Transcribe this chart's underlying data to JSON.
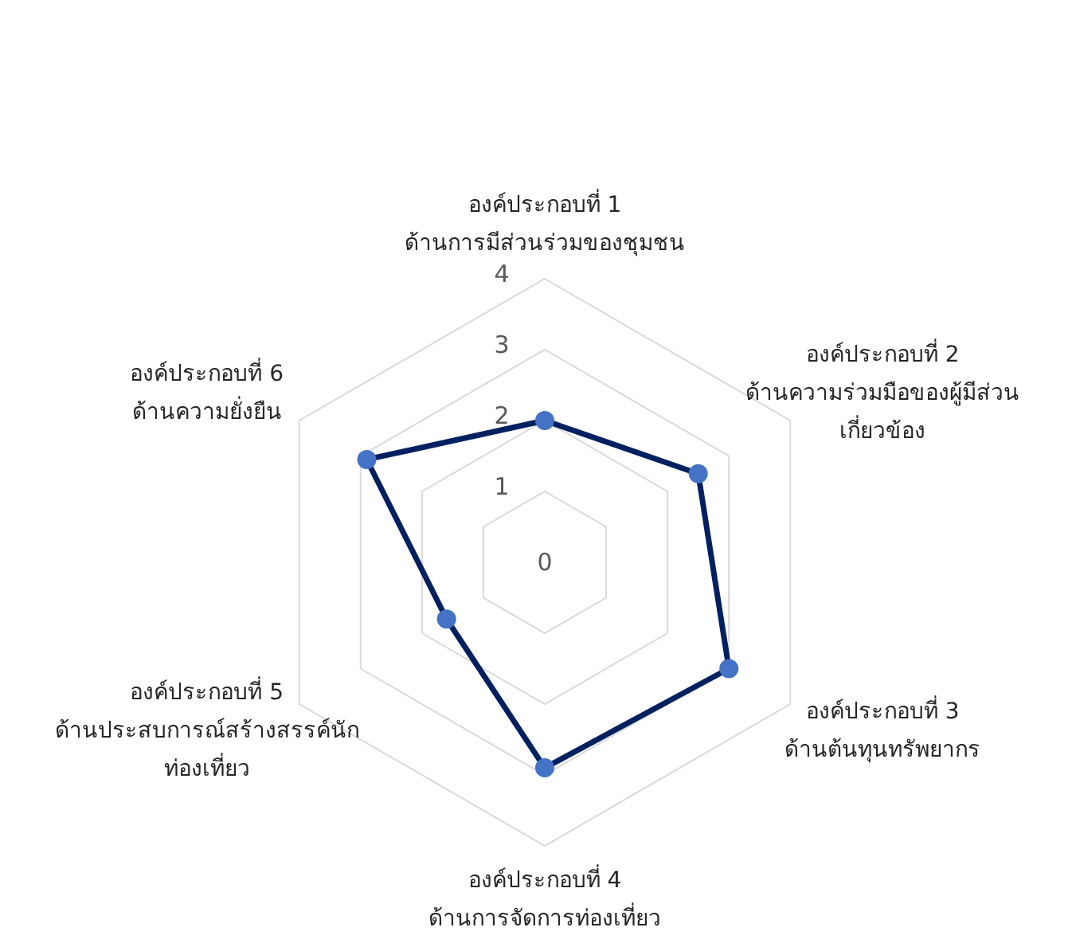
{
  "chart_data": {
    "type": "radar",
    "categories": [
      "องค์ประกอบที่ 1 ด้านการมีส่วนร่วมของชุมชน",
      "องค์ประกอบที่ 2 ด้านความร่วมมือของผู้มีส่วนเกี่ยวข้อง",
      "องค์ประกอบที่ 3 ด้านต้นทุนทรัพยากร",
      "องค์ประกอบที่ 4 ด้านการจัดการท่องเที่ยว",
      "องค์ประกอบที่ 5 ด้านประสบการณ์สร้างสรรค์นักท่องเที่ยว",
      "องค์ประกอบที่ 6 ด้านความยั่งยืน"
    ],
    "series": [
      {
        "color": "#002060",
        "values": [
          2.0,
          2.5,
          3.0,
          2.9,
          1.6,
          2.9
        ]
      }
    ],
    "ylim": [
      0,
      4
    ],
    "yticks": [
      0,
      1,
      2,
      3,
      4
    ],
    "grid": true,
    "marker": "circle"
  }
}
